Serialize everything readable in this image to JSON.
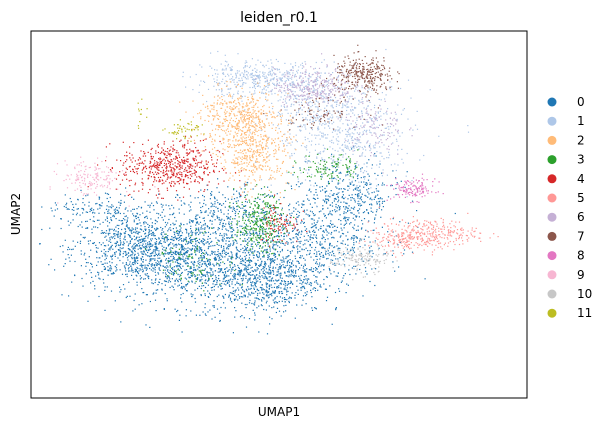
{
  "chart_data": {
    "type": "scatter",
    "title": "leiden_r0.1",
    "xlabel": "UMAP1",
    "ylabel": "UMAP2",
    "grid": false,
    "legend_placement": "right",
    "xlim": [
      0,
      100
    ],
    "ylim": [
      0,
      100
    ],
    "series": [
      {
        "name": "0",
        "color": "#1f77b4",
        "clusters": [
          {
            "cx": 22,
            "cy": 41,
            "sx": 7,
            "sy": 5,
            "n": 900
          },
          {
            "cx": 34,
            "cy": 37,
            "sx": 8,
            "sy": 6,
            "n": 900
          },
          {
            "cx": 47,
            "cy": 33,
            "sx": 6,
            "sy": 5,
            "n": 700
          },
          {
            "cx": 57,
            "cy": 43,
            "sx": 7,
            "sy": 6,
            "n": 600
          },
          {
            "cx": 64,
            "cy": 55,
            "sx": 5,
            "sy": 5,
            "n": 350
          },
          {
            "cx": 40,
            "cy": 50,
            "sx": 5,
            "sy": 4,
            "n": 300
          },
          {
            "cx": 15,
            "cy": 52,
            "sx": 6,
            "sy": 2,
            "n": 150
          }
        ]
      },
      {
        "name": "1",
        "color": "#aec7e8",
        "clusters": [
          {
            "cx": 45,
            "cy": 87,
            "sx": 6,
            "sy": 2.5,
            "n": 400
          },
          {
            "cx": 63,
            "cy": 72,
            "sx": 7,
            "sy": 7,
            "n": 600
          },
          {
            "cx": 57,
            "cy": 82,
            "sx": 5,
            "sy": 4,
            "n": 250
          }
        ]
      },
      {
        "name": "2",
        "color": "#ffbb78",
        "clusters": [
          {
            "cx": 42,
            "cy": 76,
            "sx": 4,
            "sy": 4,
            "n": 500
          },
          {
            "cx": 45,
            "cy": 66,
            "sx": 3.5,
            "sy": 4,
            "n": 350
          }
        ]
      },
      {
        "name": "3",
        "color": "#2ca02c",
        "clusters": [
          {
            "cx": 46,
            "cy": 48,
            "sx": 2.5,
            "sy": 4,
            "n": 300
          },
          {
            "cx": 60,
            "cy": 63,
            "sx": 3,
            "sy": 2,
            "n": 100
          },
          {
            "cx": 33,
            "cy": 38,
            "sx": 4,
            "sy": 4,
            "n": 80
          }
        ]
      },
      {
        "name": "4",
        "color": "#d62728",
        "clusters": [
          {
            "cx": 28,
            "cy": 63,
            "sx": 5,
            "sy": 3.5,
            "n": 550
          },
          {
            "cx": 50,
            "cy": 48,
            "sx": 2,
            "sy": 3,
            "n": 80
          }
        ]
      },
      {
        "name": "5",
        "color": "#ff9896",
        "clusters": [
          {
            "cx": 80,
            "cy": 45,
            "sx": 5,
            "sy": 2,
            "n": 300
          },
          {
            "cx": 74,
            "cy": 43,
            "sx": 3,
            "sy": 1.5,
            "n": 100
          }
        ]
      },
      {
        "name": "6",
        "color": "#c5b0d5",
        "clusters": [
          {
            "cx": 57,
            "cy": 85,
            "sx": 4,
            "sy": 2.5,
            "n": 300
          },
          {
            "cx": 69,
            "cy": 74,
            "sx": 3,
            "sy": 4,
            "n": 120
          }
        ]
      },
      {
        "name": "7",
        "color": "#8c564b",
        "clusters": [
          {
            "cx": 67,
            "cy": 88,
            "sx": 3,
            "sy": 2.5,
            "n": 300
          },
          {
            "cx": 58,
            "cy": 78,
            "sx": 4,
            "sy": 2,
            "n": 80
          }
        ]
      },
      {
        "name": "8",
        "color": "#e377c2",
        "clusters": [
          {
            "cx": 77,
            "cy": 57,
            "sx": 2.2,
            "sy": 1.5,
            "n": 130
          }
        ]
      },
      {
        "name": "9",
        "color": "#f7b6d2",
        "clusters": [
          {
            "cx": 12,
            "cy": 60,
            "sx": 3,
            "sy": 2.5,
            "n": 150
          }
        ]
      },
      {
        "name": "10",
        "color": "#c7c7c7",
        "clusters": [
          {
            "cx": 66,
            "cy": 38,
            "sx": 3,
            "sy": 2,
            "n": 150
          }
        ]
      },
      {
        "name": "11",
        "color": "#bcbd22",
        "clusters": [
          {
            "cx": 31,
            "cy": 73,
            "sx": 2,
            "sy": 1.2,
            "n": 50
          },
          {
            "cx": 22,
            "cy": 78,
            "sx": 0.5,
            "sy": 2,
            "n": 12
          }
        ]
      }
    ]
  }
}
